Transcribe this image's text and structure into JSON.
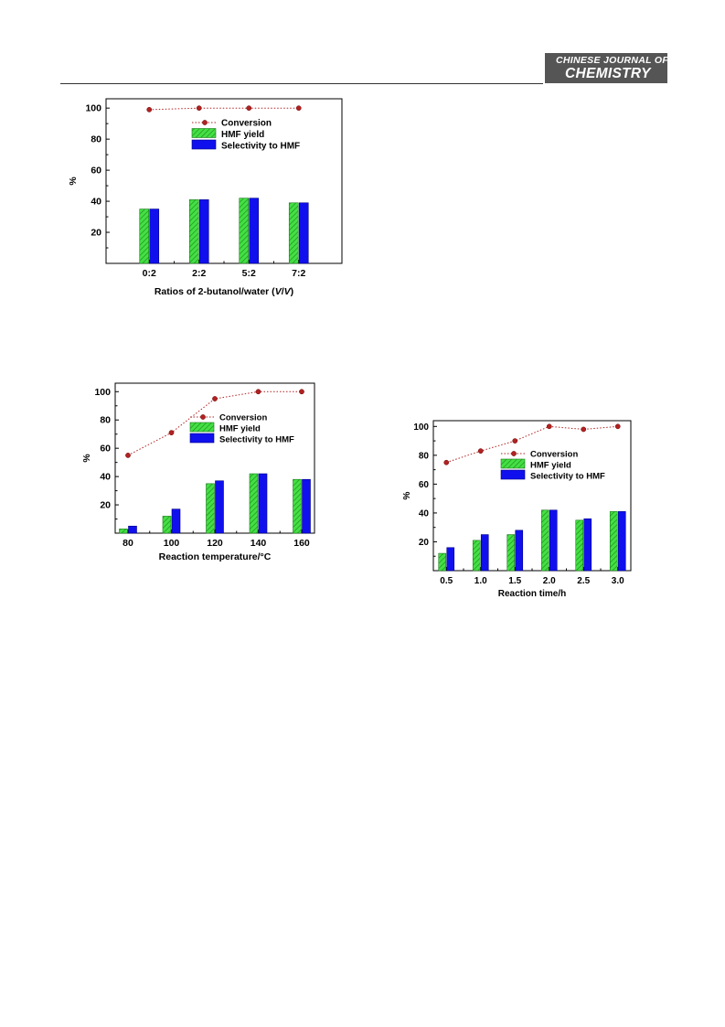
{
  "header": {
    "journal_line1": "CHINESE JOURNAL OF",
    "journal_line2": "CHEMISTRY"
  },
  "chart_data": [
    {
      "type": "bar",
      "xlabel_parts": [
        "Ratios of 2-butanol/water (",
        "V",
        "/",
        "V",
        ")"
      ],
      "ylabel": "%",
      "ylim": [
        0,
        106
      ],
      "yticks": [
        20,
        40,
        60,
        80,
        100
      ],
      "categories": [
        "0:2",
        "2:2",
        "5:2",
        "7:2"
      ],
      "series": [
        {
          "name": "Conversion",
          "type": "line",
          "color": "#b22222",
          "values": [
            99,
            100,
            100,
            100
          ]
        },
        {
          "name": "HMF yield",
          "type": "bar",
          "color": "#33dd33",
          "values": [
            35,
            41,
            42,
            39
          ]
        },
        {
          "name": "Selectivity to HMF",
          "type": "bar",
          "color": "#1010ee",
          "values": [
            35,
            41,
            42,
            39
          ]
        }
      ],
      "legend_position": "upper-middle"
    },
    {
      "type": "bar",
      "xlabel_parts": [
        "Reaction temperature/°C"
      ],
      "ylabel": "%",
      "ylim": [
        0,
        106
      ],
      "yticks": [
        20,
        40,
        60,
        80,
        100
      ],
      "categories": [
        "80",
        "100",
        "120",
        "140",
        "160"
      ],
      "series": [
        {
          "name": "Conversion",
          "type": "line",
          "color": "#b22222",
          "values": [
            55,
            71,
            95,
            100,
            100
          ]
        },
        {
          "name": "HMF yield",
          "type": "bar",
          "color": "#33dd33",
          "values": [
            3,
            12,
            35,
            42,
            38
          ]
        },
        {
          "name": "Selectivity to HMF",
          "type": "bar",
          "color": "#1010ee",
          "values": [
            5,
            17,
            37,
            42,
            38
          ]
        }
      ],
      "legend_position": "middle-right"
    },
    {
      "type": "bar",
      "xlabel_parts": [
        "Reaction time/h"
      ],
      "ylabel": "%",
      "ylim": [
        0,
        104
      ],
      "yticks": [
        20,
        40,
        60,
        80,
        100
      ],
      "categories": [
        "0.5",
        "1.0",
        "1.5",
        "2.0",
        "2.5",
        "3.0"
      ],
      "series": [
        {
          "name": "Conversion",
          "type": "line",
          "color": "#b22222",
          "values": [
            75,
            83,
            90,
            100,
            98,
            100
          ]
        },
        {
          "name": "HMF yield",
          "type": "bar",
          "color": "#33dd33",
          "values": [
            12,
            21,
            25,
            42,
            35,
            41
          ]
        },
        {
          "name": "Selectivity to HMF",
          "type": "bar",
          "color": "#1010ee",
          "values": [
            16,
            25,
            28,
            42,
            36,
            41
          ]
        }
      ],
      "legend_position": "middle-right"
    }
  ]
}
